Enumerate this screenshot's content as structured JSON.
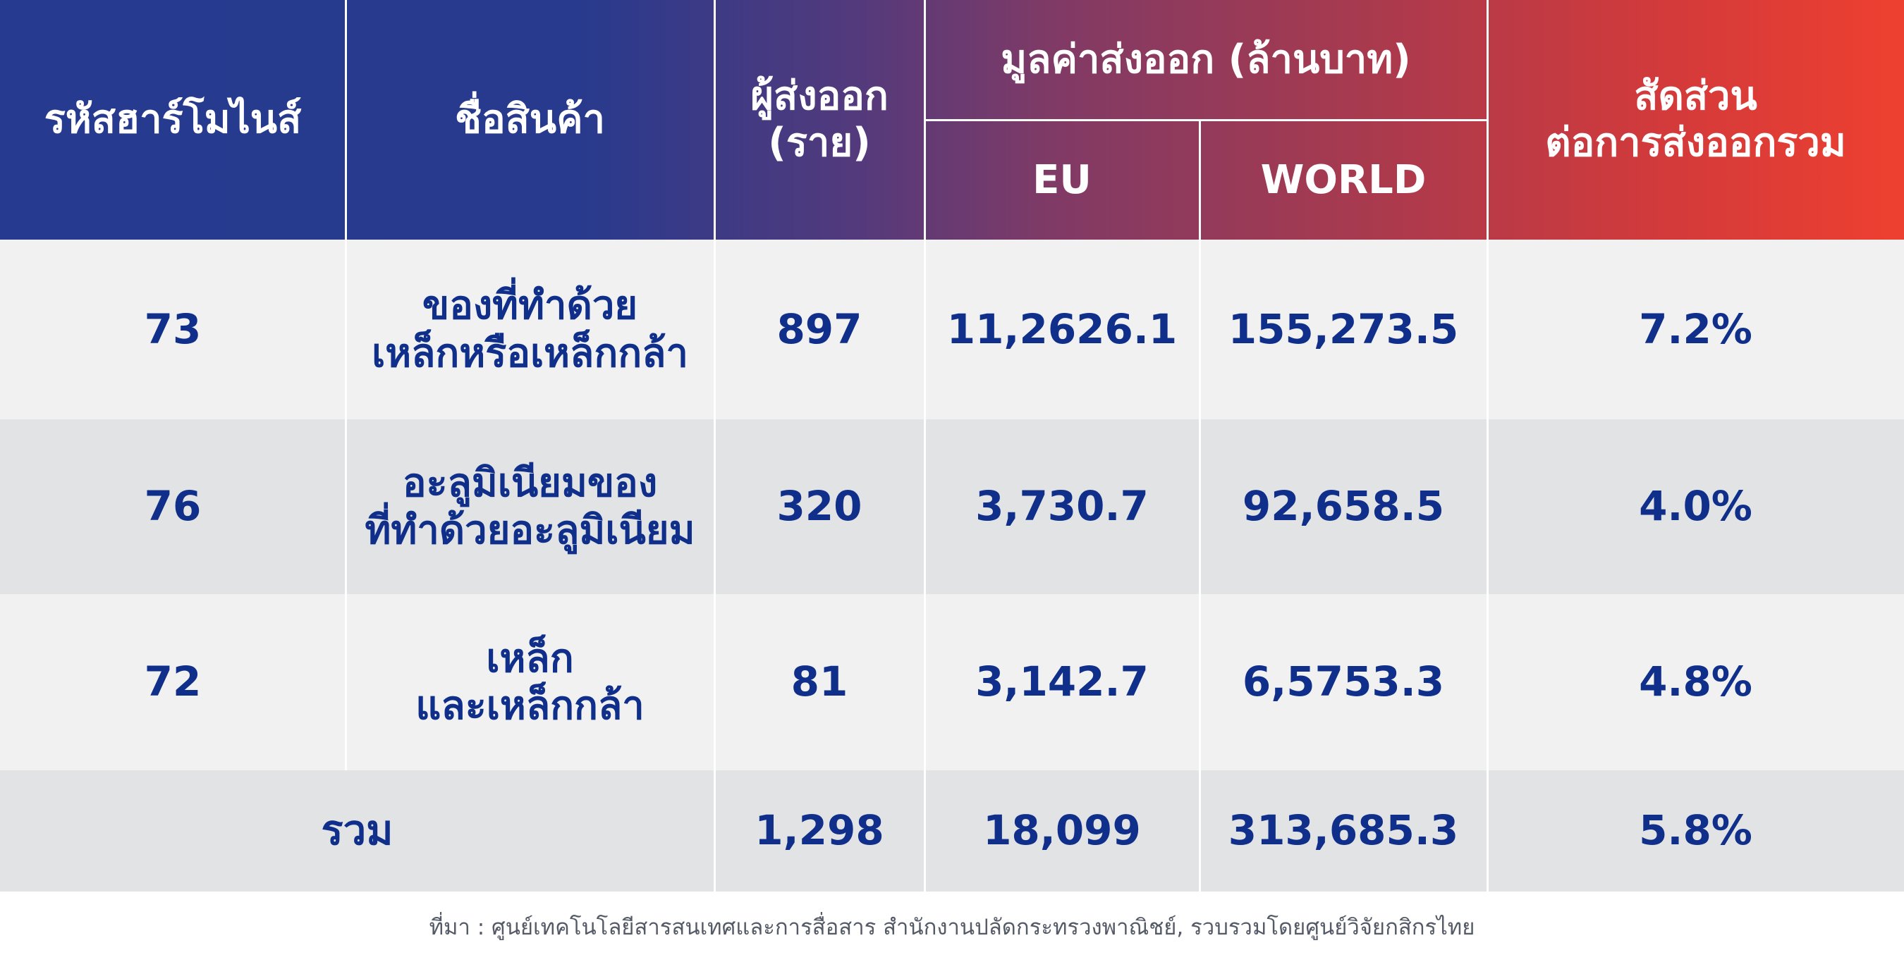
{
  "header": {
    "hs_code": "รหัสฮาร์โมไนส์",
    "product": "ชื่อสินค้า",
    "exporters_line1": "ผู้ส่งออก",
    "exporters_line2": "(ราย)",
    "value_title": "มูลค่าส่งออก (ล้านบาท)",
    "eu": "EU",
    "world": "WORLD",
    "share_line1": "สัดส่วน",
    "share_line2": "ต่อการส่งออกรวม"
  },
  "rows": [
    {
      "code": "73",
      "name_line1": "ของที่ทำด้วย",
      "name_line2": "เหล็กหรือเหล็กกล้า",
      "exporters": "897",
      "eu": "11,2626.1",
      "world": "155,273.5",
      "share": "7.2%"
    },
    {
      "code": "76",
      "name_line1": "อะลูมิเนียมของ",
      "name_line2": "ที่ทำด้วยอะลูมิเนียม",
      "exporters": "320",
      "eu": "3,730.7",
      "world": "92,658.5",
      "share": "4.0%"
    },
    {
      "code": "72",
      "name_line1": "เหล็ก",
      "name_line2": "และเหล็กกล้า",
      "exporters": "81",
      "eu": "3,142.7",
      "world": "6,5753.3",
      "share": "4.8%"
    }
  ],
  "total": {
    "label": "รวม",
    "exporters": "1,298",
    "eu": "18,099",
    "world": "313,685.3",
    "share": "5.8%"
  },
  "footer": {
    "source": "ที่มา : ศูนย์เทคโนโลยีสารสนเทศและการสื่อสาร สำนักงานปลัดกระทรวงพาณิชย์, รวบรวมโดยศูนย์วิจัยกสิกรไทย"
  },
  "colors": {
    "header_start": "#263a8f",
    "header_end": "#ee4030",
    "text_blue": "#0f2f8a",
    "row_light": "#f1f1f2",
    "row_dark": "#e2e3e5"
  }
}
